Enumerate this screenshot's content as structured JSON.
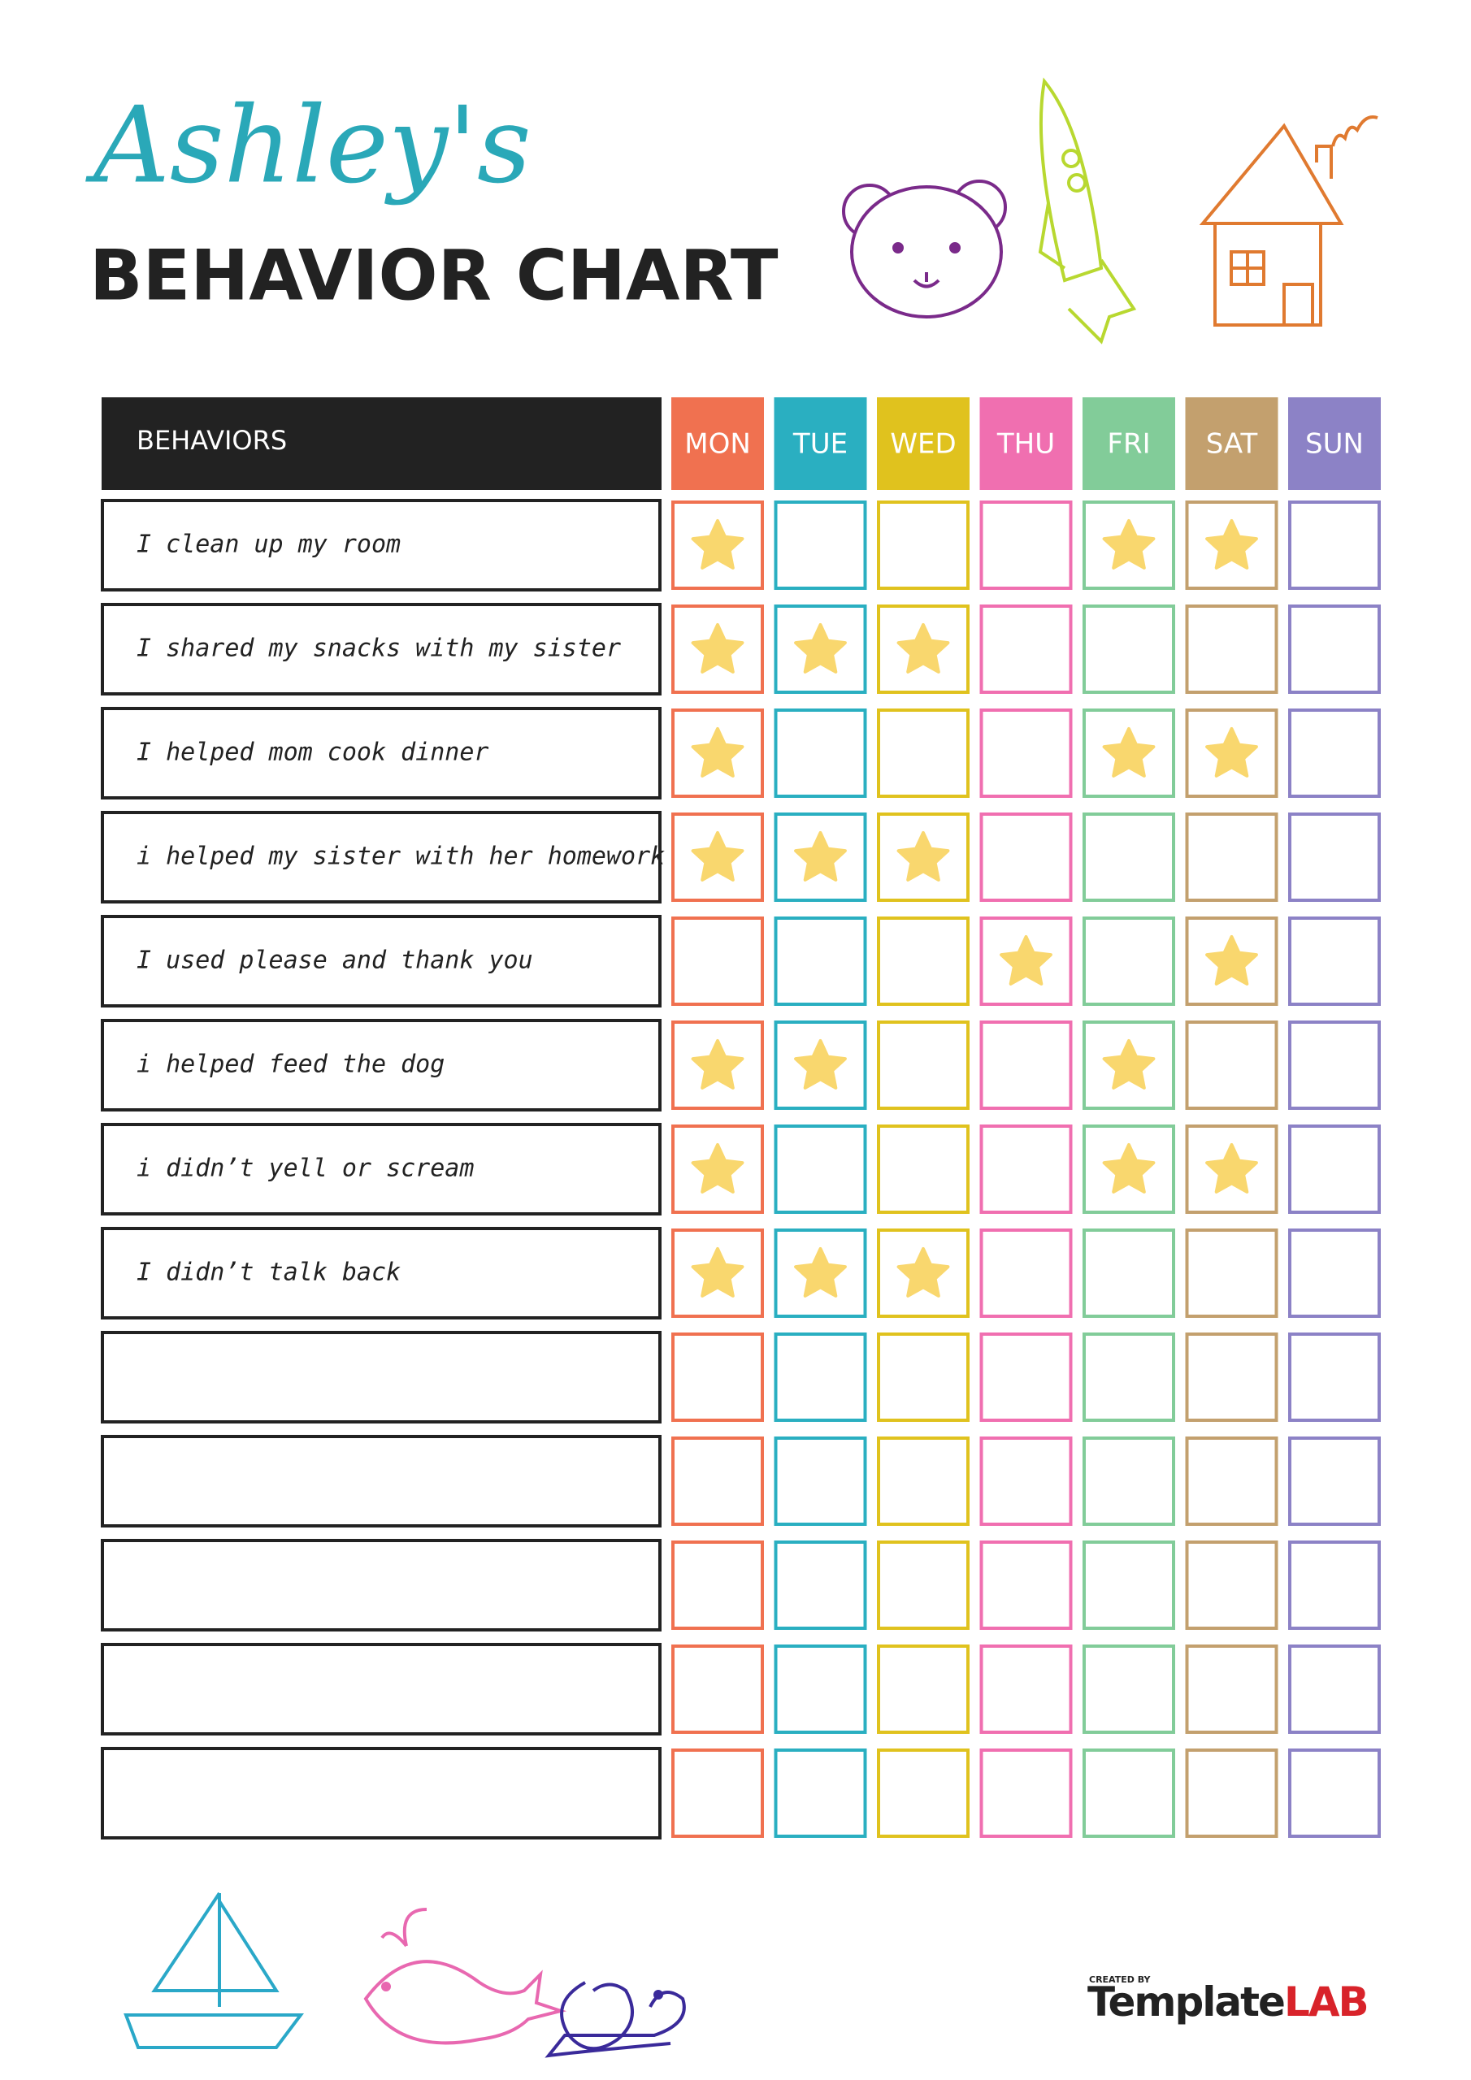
{
  "header": {
    "name": "Ashley's",
    "title": "BEHAVIOR CHART"
  },
  "table": {
    "behaviors_heading": "BEHAVIORS",
    "days": [
      {
        "label": "MON",
        "color": "#f07150"
      },
      {
        "label": "TUE",
        "color": "#2aafc1"
      },
      {
        "label": "WED",
        "color": "#e0c21e"
      },
      {
        "label": "THU",
        "color": "#f06fb0"
      },
      {
        "label": "FRI",
        "color": "#82cc99"
      },
      {
        "label": "SAT",
        "color": "#c3a06e"
      },
      {
        "label": "SUN",
        "color": "#8c82c6"
      }
    ],
    "star_color": "#f9d76e",
    "rows": [
      {
        "behavior": "I clean up my room",
        "stars": [
          true,
          false,
          false,
          false,
          true,
          true,
          false
        ]
      },
      {
        "behavior": "I shared my snacks with my sister",
        "stars": [
          true,
          true,
          true,
          false,
          false,
          false,
          false
        ]
      },
      {
        "behavior": "I helped mom cook dinner",
        "stars": [
          true,
          false,
          false,
          false,
          true,
          true,
          false
        ]
      },
      {
        "behavior": "i helped my sister with her homework",
        "stars": [
          true,
          true,
          true,
          false,
          false,
          false,
          false
        ]
      },
      {
        "behavior": "I used please and thank you",
        "stars": [
          false,
          false,
          false,
          true,
          false,
          true,
          false
        ]
      },
      {
        "behavior": "i helped feed the dog",
        "stars": [
          true,
          true,
          false,
          false,
          true,
          false,
          false
        ]
      },
      {
        "behavior": "i didn’t yell or scream",
        "stars": [
          true,
          false,
          false,
          false,
          true,
          true,
          false
        ]
      },
      {
        "behavior": "I didn’t talk back",
        "stars": [
          true,
          true,
          true,
          false,
          false,
          false,
          false
        ]
      },
      {
        "stars": [
          false,
          false,
          false,
          false,
          false,
          false,
          false
        ]
      },
      {
        "stars": [
          false,
          false,
          false,
          false,
          false,
          false,
          false
        ]
      },
      {
        "stars": [
          false,
          false,
          false,
          false,
          false,
          false,
          false
        ]
      },
      {
        "stars": [
          false,
          false,
          false,
          false,
          false,
          false,
          false
        ]
      },
      {
        "stars": [
          false,
          false,
          false,
          false,
          false,
          false,
          false
        ]
      }
    ]
  },
  "logo": {
    "created_by": "CREATED BY",
    "name_part1": "Template",
    "name_part2": "LAB"
  }
}
